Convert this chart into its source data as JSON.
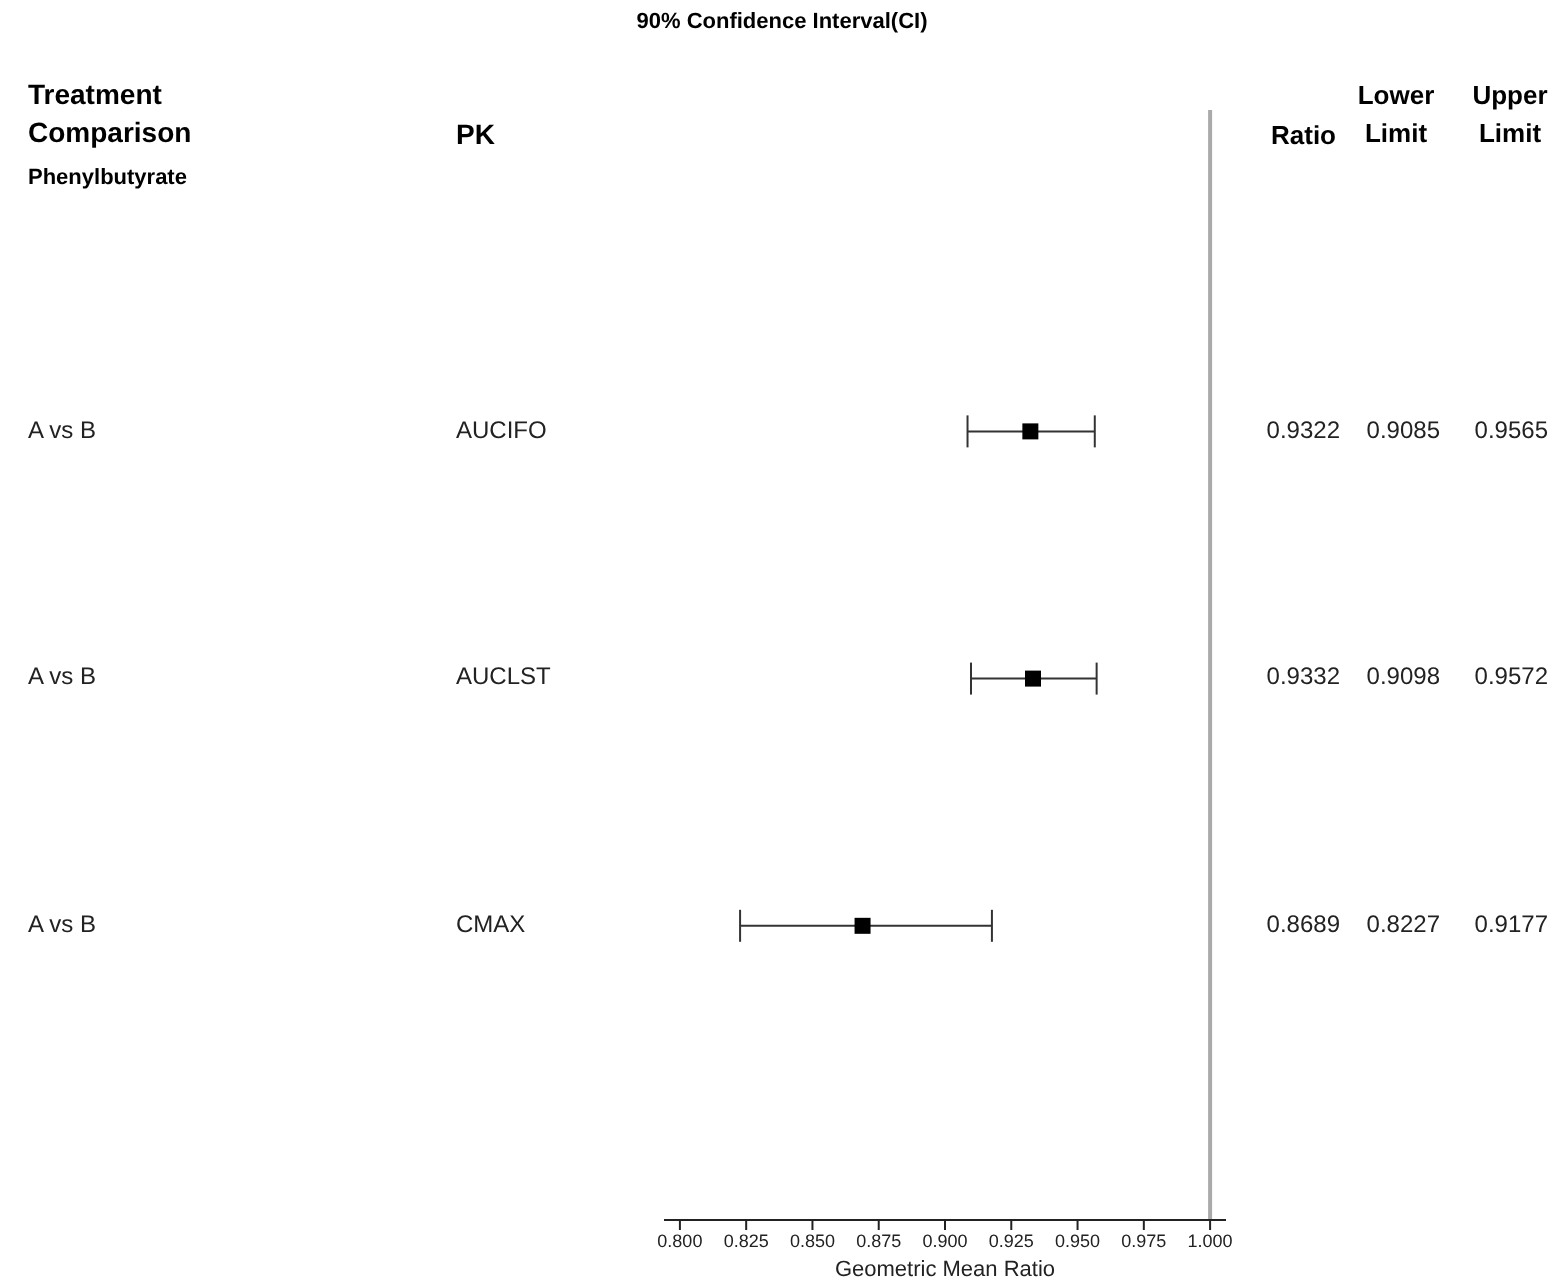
{
  "chart_data": {
    "type": "scatter",
    "orientation": "horizontal",
    "title": "90% Confidence Interval(CI)",
    "xlabel": "Geometric Mean Ratio",
    "categories": [
      "AUCIFO",
      "AUCLST",
      "CMAX"
    ],
    "values": [
      0.9322,
      0.9332,
      0.8689
    ],
    "errors": [
      [
        0.9085,
        0.9565
      ],
      [
        0.9098,
        0.9572
      ],
      [
        0.8227,
        0.9177
      ]
    ],
    "color": "#000000",
    "marker": "square",
    "data_labels": true,
    "grid": false,
    "xlim": [
      0.794,
      1.006
    ],
    "xticks": [
      {
        "value": 0.8,
        "label": "0.800"
      },
      {
        "value": 0.825,
        "label": "0.825"
      },
      {
        "value": 0.85,
        "label": "0.850"
      },
      {
        "value": 0.875,
        "label": "0.875"
      },
      {
        "value": 0.9,
        "label": "0.900"
      },
      {
        "value": 0.925,
        "label": "0.925"
      },
      {
        "value": 0.95,
        "label": "0.950"
      },
      {
        "value": 0.975,
        "label": "0.975"
      },
      {
        "value": 1,
        "label": "1.000"
      }
    ],
    "ref_lines": [
      {
        "axis": "x",
        "value": 1,
        "color": "#aaaaaa"
      }
    ],
    "annotations": [
      "Treatment Comparison",
      "PK",
      "Ratio",
      "Lower Limit",
      "Upper Limit",
      "Phenylbutyrate",
      "A vs B",
      "A vs B",
      "A vs B",
      "0.9085",
      "0.9565",
      "0.9098",
      "0.9572",
      "0.8227",
      "0.9177"
    ]
  }
}
